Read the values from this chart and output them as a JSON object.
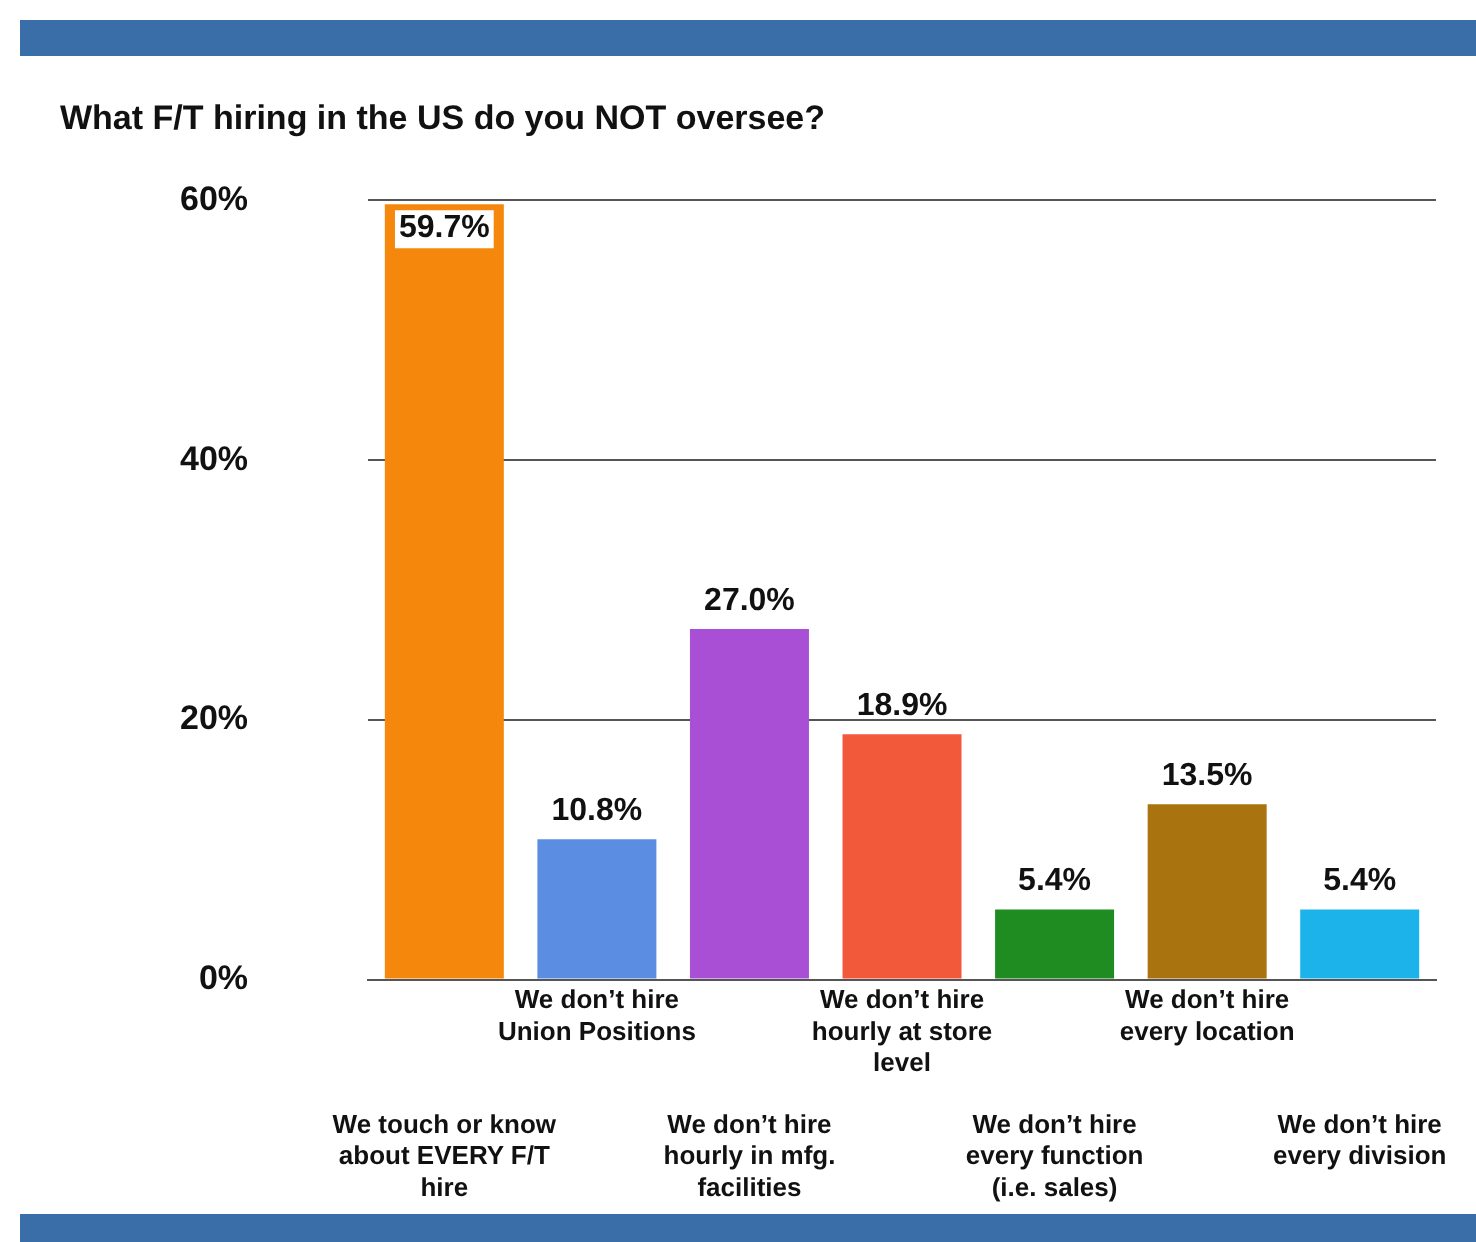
{
  "chart_data": {
    "type": "bar",
    "title": "What F/T hiring in the US do you NOT oversee?",
    "categories": [
      "We touch or know about EVERY F/T hire",
      "We don’t hire Union Positions",
      "We don’t hire hourly in mfg. facilities",
      "We don’t hire hourly at store level",
      "We don’t hire every function (i.e. sales)",
      "We don’t hire every location",
      "We don’t hire every division"
    ],
    "values": [
      59.7,
      10.8,
      27.0,
      18.9,
      5.4,
      13.5,
      5.4
    ],
    "colors": [
      "#f5880c",
      "#5b8ee3",
      "#a94fd6",
      "#f2583a",
      "#1f8c21",
      "#a9740f",
      "#1cb3ea"
    ],
    "value_labels": [
      "59.7%",
      "10.8%",
      "27.0%",
      "18.9%",
      "5.4%",
      "13.5%",
      "5.4%"
    ],
    "ylim": [
      0,
      60
    ],
    "yticks": [
      {
        "value": 0,
        "label": "0%"
      },
      {
        "value": 20,
        "label": "20%"
      },
      {
        "value": 40,
        "label": "40%"
      },
      {
        "value": 60,
        "label": "60%"
      }
    ],
    "grid": "y",
    "legend": false
  }
}
